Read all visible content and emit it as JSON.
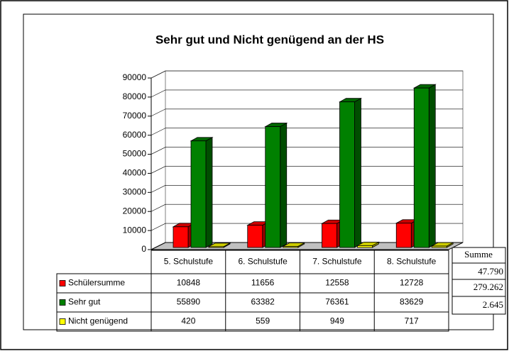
{
  "chart_data": {
    "type": "bar3d",
    "title": "Sehr gut und Nicht genügend an der HS",
    "categories": [
      "5. Schulstufe",
      "6. Schulstufe",
      "7. Schulstufe",
      "8. Schulstufe"
    ],
    "series": [
      {
        "name": "Schülersumme",
        "color": "#ff0000",
        "values": [
          10848,
          11656,
          12558,
          12728
        ]
      },
      {
        "name": "Sehr gut",
        "color": "#008000",
        "values": [
          55890,
          63382,
          76361,
          83629
        ]
      },
      {
        "name": "Nicht genügend",
        "color": "#ffff00",
        "values": [
          420,
          559,
          949,
          717
        ]
      }
    ],
    "ylim": [
      0,
      90000
    ],
    "yticks": [
      0,
      10000,
      20000,
      30000,
      40000,
      50000,
      60000,
      70000,
      80000,
      90000
    ],
    "grid": true
  },
  "side_table": {
    "header": "Summe",
    "rows": [
      "47.790",
      "279.262",
      "2.645"
    ]
  }
}
